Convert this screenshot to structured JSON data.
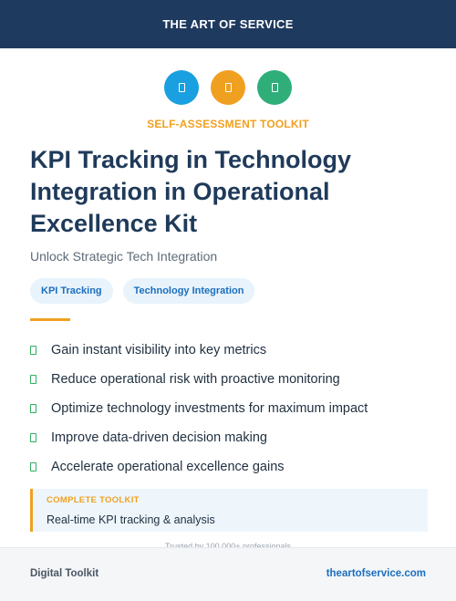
{
  "header": {
    "title": "THE ART OF SERVICE"
  },
  "icons": [
    {
      "name": "document-icon",
      "color": "#1aa0e0"
    },
    {
      "name": "document-icon",
      "color": "#f0a020"
    },
    {
      "name": "document-icon",
      "color": "#2fae7a"
    }
  ],
  "eyebrow": "SELF-ASSESSMENT TOOLKIT",
  "title": "KPI Tracking in Technology Integration in Operational Excellence Kit",
  "subtitle": "Unlock Strategic Tech Integration",
  "tags": [
    "KPI Tracking",
    "Technology Integration"
  ],
  "benefits": [
    "Gain instant visibility into key metrics",
    "Reduce operational risk with proactive monitoring",
    "Optimize technology investments for maximum impact",
    "Improve data-driven decision making",
    "Accelerate operational excellence gains"
  ],
  "toolkit": {
    "label": "COMPLETE TOOLKIT",
    "description": "Real-time KPI tracking & analysis"
  },
  "trusted": "Trusted by 100,000+ professionals",
  "footer": {
    "left": "Digital Toolkit",
    "right": "theartofservice.com"
  },
  "colors": {
    "header_bg": "#1f3a5f",
    "accent": "#f0a020",
    "link": "#1b6fbf",
    "check": "#2fae60"
  }
}
